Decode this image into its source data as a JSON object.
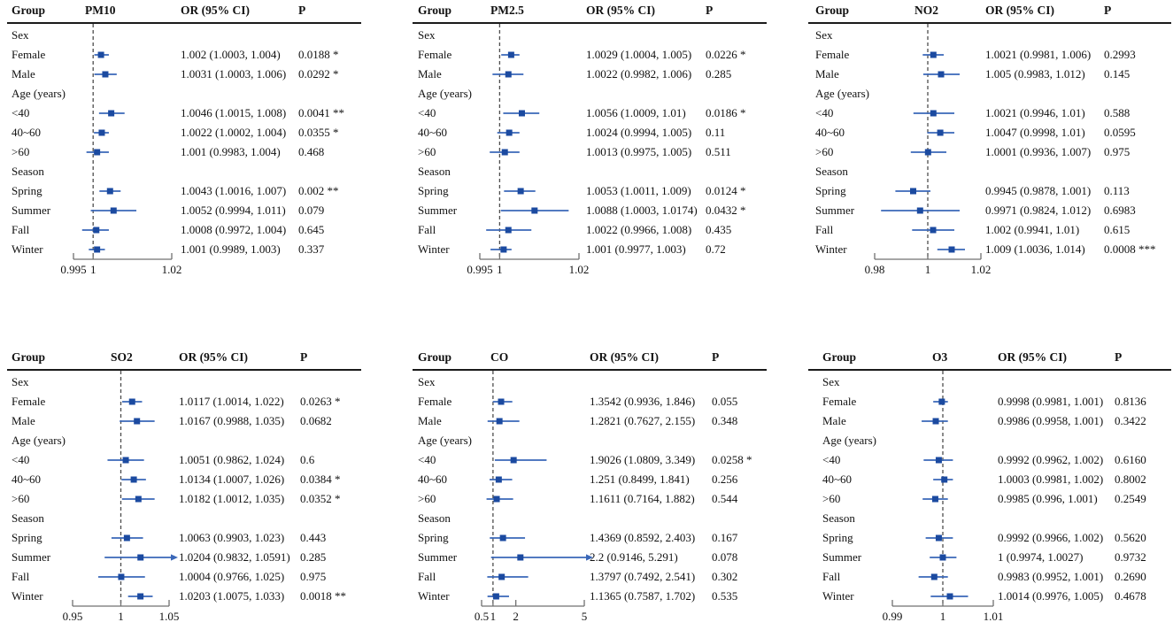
{
  "figure": {
    "description": "Forest plots of odds ratios (95% CI) for six air pollutants by sex, age and season",
    "marker_color": "#1b4aa0",
    "ci_line_color": "#3a67b8",
    "ref_line_color": "#4d4d4d",
    "axis_color": "#707070"
  },
  "chart_data": [
    {
      "type": "scatter",
      "variant": "forest-plot",
      "pollutant": "PM10",
      "columns": {
        "group": "Group",
        "or": "OR (95% CI)",
        "p": "P"
      },
      "xlim": [
        0.995,
        1.02
      ],
      "ref_line": 1,
      "ticks": [
        {
          "v": 0.995,
          "label": "0.995"
        },
        {
          "v": 1,
          "label": "1"
        },
        {
          "v": 1.02,
          "label": "1.02"
        }
      ],
      "rows": [
        {
          "label": "Sex",
          "section": true
        },
        {
          "label": "Female",
          "or": 1.002,
          "lo": 1.0003,
          "hi": 1.004,
          "or_ci": "1.002 (1.0003, 1.004)",
          "p": "0.0188 *"
        },
        {
          "label": "Male",
          "or": 1.0031,
          "lo": 1.0003,
          "hi": 1.006,
          "or_ci": "1.0031 (1.0003, 1.006)",
          "p": "0.0292 *"
        },
        {
          "label": "Age (years)",
          "section": true
        },
        {
          "label": "<40",
          "or": 1.0046,
          "lo": 1.0015,
          "hi": 1.008,
          "or_ci": "1.0046 (1.0015, 1.008)",
          "p": "0.0041 **"
        },
        {
          "label": "40~60",
          "or": 1.0022,
          "lo": 1.0002,
          "hi": 1.004,
          "or_ci": "1.0022 (1.0002, 1.004)",
          "p": "0.0355 *"
        },
        {
          "label": ">60",
          "or": 1.001,
          "lo": 0.9983,
          "hi": 1.004,
          "or_ci": "1.001 (0.9983, 1.004)",
          "p": "0.468"
        },
        {
          "label": "Season",
          "section": true
        },
        {
          "label": "Spring",
          "or": 1.0043,
          "lo": 1.0016,
          "hi": 1.007,
          "or_ci": "1.0043 (1.0016, 1.007)",
          "p": "0.002 **"
        },
        {
          "label": "Summer",
          "or": 1.0052,
          "lo": 0.9994,
          "hi": 1.011,
          "or_ci": "1.0052 (0.9994, 1.011)",
          "p": "0.079"
        },
        {
          "label": "Fall",
          "or": 1.0008,
          "lo": 0.9972,
          "hi": 1.004,
          "or_ci": "1.0008 (0.9972, 1.004)",
          "p": "0.645"
        },
        {
          "label": "Winter",
          "or": 1.001,
          "lo": 0.9989,
          "hi": 1.003,
          "or_ci": "1.001 (0.9989, 1.003)",
          "p": "0.337"
        }
      ]
    },
    {
      "type": "scatter",
      "variant": "forest-plot",
      "pollutant": "PM2.5",
      "columns": {
        "group": "Group",
        "or": "OR (95% CI)",
        "p": "P"
      },
      "xlim": [
        0.995,
        1.02
      ],
      "ref_line": 1,
      "ticks": [
        {
          "v": 0.995,
          "label": "0.995"
        },
        {
          "v": 1,
          "label": "1"
        },
        {
          "v": 1.02,
          "label": "1.02"
        }
      ],
      "rows": [
        {
          "label": "Sex",
          "section": true
        },
        {
          "label": "Female",
          "or": 1.0029,
          "lo": 1.0004,
          "hi": 1.005,
          "or_ci": "1.0029 (1.0004, 1.005)",
          "p": "0.0226 *"
        },
        {
          "label": "Male",
          "or": 1.0022,
          "lo": 0.9982,
          "hi": 1.006,
          "or_ci": "1.0022 (0.9982, 1.006)",
          "p": "0.285"
        },
        {
          "label": "Age (years)",
          "section": true
        },
        {
          "label": "<40",
          "or": 1.0056,
          "lo": 1.0009,
          "hi": 1.01,
          "or_ci": "1.0056 (1.0009, 1.01)",
          "p": "0.0186 *"
        },
        {
          "label": "40~60",
          "or": 1.0024,
          "lo": 0.9994,
          "hi": 1.005,
          "or_ci": "1.0024 (0.9994, 1.005)",
          "p": "0.11"
        },
        {
          "label": ">60",
          "or": 1.0013,
          "lo": 0.9975,
          "hi": 1.005,
          "or_ci": "1.0013 (0.9975, 1.005)",
          "p": "0.511"
        },
        {
          "label": "Season",
          "section": true
        },
        {
          "label": "Spring",
          "or": 1.0053,
          "lo": 1.0011,
          "hi": 1.009,
          "or_ci": "1.0053 (1.0011, 1.009)",
          "p": "0.0124 *"
        },
        {
          "label": "Summer",
          "or": 1.0088,
          "lo": 1.0003,
          "hi": 1.0174,
          "or_ci": "1.0088 (1.0003, 1.0174)",
          "p": "0.0432 *"
        },
        {
          "label": "Fall",
          "or": 1.0022,
          "lo": 0.9966,
          "hi": 1.008,
          "or_ci": "1.0022 (0.9966, 1.008)",
          "p": "0.435"
        },
        {
          "label": "Winter",
          "or": 1.001,
          "lo": 0.9977,
          "hi": 1.003,
          "or_ci": "1.001 (0.9977, 1.003)",
          "p": "0.72"
        }
      ]
    },
    {
      "type": "scatter",
      "variant": "forest-plot",
      "pollutant": "NO2",
      "columns": {
        "group": "Group",
        "or": "OR (95% CI)",
        "p": "P"
      },
      "xlim": [
        0.98,
        1.02
      ],
      "ref_line": 1,
      "ticks": [
        {
          "v": 0.98,
          "label": "0.98"
        },
        {
          "v": 1,
          "label": "1"
        },
        {
          "v": 1.02,
          "label": "1.02"
        }
      ],
      "rows": [
        {
          "label": "Sex",
          "section": true
        },
        {
          "label": "Female",
          "or": 1.0021,
          "lo": 0.9981,
          "hi": 1.006,
          "or_ci": "1.0021 (0.9981, 1.006)",
          "p": "0.2993"
        },
        {
          "label": "Male",
          "or": 1.005,
          "lo": 0.9983,
          "hi": 1.012,
          "or_ci": "1.005 (0.9983, 1.012)",
          "p": "0.145"
        },
        {
          "label": "Age (years)",
          "section": true
        },
        {
          "label": "<40",
          "or": 1.0021,
          "lo": 0.9946,
          "hi": 1.01,
          "or_ci": "1.0021 (0.9946, 1.01)",
          "p": "0.588"
        },
        {
          "label": "40~60",
          "or": 1.0047,
          "lo": 0.9998,
          "hi": 1.01,
          "or_ci": "1.0047 (0.9998, 1.01)",
          "p": "0.0595"
        },
        {
          "label": ">60",
          "or": 1.0001,
          "lo": 0.9936,
          "hi": 1.007,
          "or_ci": "1.0001 (0.9936, 1.007)",
          "p": "0.975"
        },
        {
          "label": "Season",
          "section": true
        },
        {
          "label": "Spring",
          "or": 0.9945,
          "lo": 0.9878,
          "hi": 1.001,
          "or_ci": "0.9945 (0.9878, 1.001)",
          "p": "0.113"
        },
        {
          "label": "Summer",
          "or": 0.9971,
          "lo": 0.9824,
          "hi": 1.012,
          "or_ci": "0.9971 (0.9824, 1.012)",
          "p": "0.6983"
        },
        {
          "label": "Fall",
          "or": 1.002,
          "lo": 0.9941,
          "hi": 1.01,
          "or_ci": "1.002 (0.9941, 1.01)",
          "p": "0.615"
        },
        {
          "label": "Winter",
          "or": 1.009,
          "lo": 1.0036,
          "hi": 1.014,
          "or_ci": "1.009 (1.0036, 1.014)",
          "p": "0.0008 ***"
        }
      ]
    },
    {
      "type": "scatter",
      "variant": "forest-plot",
      "pollutant": "SO2",
      "columns": {
        "group": "Group",
        "or": "OR (95% CI)",
        "p": "P"
      },
      "xlim": [
        0.95,
        1.05
      ],
      "ref_line": 1,
      "ticks": [
        {
          "v": 0.95,
          "label": "0.95"
        },
        {
          "v": 1,
          "label": "1"
        },
        {
          "v": 1.05,
          "label": "1.05"
        }
      ],
      "rows": [
        {
          "label": "Sex",
          "section": true
        },
        {
          "label": "Female",
          "or": 1.0117,
          "lo": 1.0014,
          "hi": 1.022,
          "or_ci": "1.0117 (1.0014, 1.022)",
          "p": "0.0263 *"
        },
        {
          "label": "Male",
          "or": 1.0167,
          "lo": 0.9988,
          "hi": 1.035,
          "or_ci": "1.0167 (0.9988, 1.035)",
          "p": "0.0682"
        },
        {
          "label": "Age (years)",
          "section": true
        },
        {
          "label": "<40",
          "or": 1.0051,
          "lo": 0.9862,
          "hi": 1.024,
          "or_ci": "1.0051 (0.9862, 1.024)",
          "p": "0.6"
        },
        {
          "label": "40~60",
          "or": 1.0134,
          "lo": 1.0007,
          "hi": 1.026,
          "or_ci": "1.0134 (1.0007, 1.026)",
          "p": "0.0384 *"
        },
        {
          "label": ">60",
          "or": 1.0182,
          "lo": 1.0012,
          "hi": 1.035,
          "or_ci": "1.0182 (1.0012, 1.035)",
          "p": "0.0352 *"
        },
        {
          "label": "Season",
          "section": true
        },
        {
          "label": "Spring",
          "or": 1.0063,
          "lo": 0.9903,
          "hi": 1.023,
          "or_ci": "1.0063 (0.9903, 1.023)",
          "p": "0.443"
        },
        {
          "label": "Summer",
          "or": 1.0204,
          "lo": 0.9832,
          "hi": 1.0591,
          "or_ci": "1.0204 (0.9832, 1.0591)",
          "p": "0.285"
        },
        {
          "label": "Fall",
          "or": 1.0004,
          "lo": 0.9766,
          "hi": 1.025,
          "or_ci": "1.0004 (0.9766, 1.025)",
          "p": "0.975"
        },
        {
          "label": "Winter",
          "or": 1.0203,
          "lo": 1.0075,
          "hi": 1.033,
          "or_ci": "1.0203 (1.0075, 1.033)",
          "p": "0.0018 **"
        }
      ]
    },
    {
      "type": "scatter",
      "variant": "forest-plot",
      "pollutant": "CO",
      "columns": {
        "group": "Group",
        "or": "OR (95% CI)",
        "p": "P"
      },
      "xlim": [
        0.5,
        5
      ],
      "ref_line": 1,
      "ticks": [
        {
          "v": 0.5,
          "label": "0.5"
        },
        {
          "v": 1,
          "label": "1"
        },
        {
          "v": 2,
          "label": "2"
        },
        {
          "v": 5,
          "label": "5"
        }
      ],
      "rows": [
        {
          "label": "Sex",
          "section": true
        },
        {
          "label": "Female",
          "or": 1.3542,
          "lo": 0.9936,
          "hi": 1.846,
          "or_ci": "1.3542 (0.9936, 1.846)",
          "p": "0.055"
        },
        {
          "label": "Male",
          "or": 1.2821,
          "lo": 0.7627,
          "hi": 2.155,
          "or_ci": "1.2821 (0.7627, 2.155)",
          "p": "0.348"
        },
        {
          "label": "Age (years)",
          "section": true
        },
        {
          "label": "<40",
          "or": 1.9026,
          "lo": 1.0809,
          "hi": 3.349,
          "or_ci": "1.9026 (1.0809, 3.349)",
          "p": "0.0258 *"
        },
        {
          "label": "40~60",
          "or": 1.251,
          "lo": 0.8499,
          "hi": 1.841,
          "or_ci": "1.251 (0.8499, 1.841)",
          "p": "0.256"
        },
        {
          "label": ">60",
          "or": 1.1611,
          "lo": 0.7164,
          "hi": 1.882,
          "or_ci": "1.1611 (0.7164, 1.882)",
          "p": "0.544"
        },
        {
          "label": "Season",
          "section": true
        },
        {
          "label": "Spring",
          "or": 1.4369,
          "lo": 0.8592,
          "hi": 2.403,
          "or_ci": "1.4369 (0.8592, 2.403)",
          "p": "0.167"
        },
        {
          "label": "Summer",
          "or": 2.2,
          "lo": 0.9146,
          "hi": 5.291,
          "or_ci": "2.2 (0.9146, 5.291)",
          "p": "0.078"
        },
        {
          "label": "Fall",
          "or": 1.3797,
          "lo": 0.7492,
          "hi": 2.541,
          "or_ci": "1.3797 (0.7492, 2.541)",
          "p": "0.302"
        },
        {
          "label": "Winter",
          "or": 1.1365,
          "lo": 0.7587,
          "hi": 1.702,
          "or_ci": "1.1365 (0.7587, 1.702)",
          "p": "0.535"
        }
      ]
    },
    {
      "type": "scatter",
      "variant": "forest-plot",
      "pollutant": "O3",
      "columns": {
        "group": "Group",
        "or": "OR (95% CI)",
        "p": "P"
      },
      "xlim": [
        0.99,
        1.01
      ],
      "ref_line": 1,
      "ticks": [
        {
          "v": 0.99,
          "label": "0.99"
        },
        {
          "v": 1,
          "label": "1"
        },
        {
          "v": 1.01,
          "label": "1.01"
        }
      ],
      "rows": [
        {
          "label": "Sex",
          "section": true
        },
        {
          "label": "Female",
          "or": 0.9998,
          "lo": 0.9981,
          "hi": 1.001,
          "or_ci": "0.9998 (0.9981, 1.001)",
          "p": "0.8136"
        },
        {
          "label": "Male",
          "or": 0.9986,
          "lo": 0.9958,
          "hi": 1.001,
          "or_ci": "0.9986 (0.9958, 1.001)",
          "p": "0.3422"
        },
        {
          "label": "Age (years)",
          "section": true
        },
        {
          "label": "<40",
          "or": 0.9992,
          "lo": 0.9962,
          "hi": 1.002,
          "or_ci": "0.9992 (0.9962, 1.002)",
          "p": "0.6160"
        },
        {
          "label": "40~60",
          "or": 1.0003,
          "lo": 0.9981,
          "hi": 1.002,
          "or_ci": "1.0003 (0.9981, 1.002)",
          "p": "0.8002"
        },
        {
          "label": ">60",
          "or": 0.9985,
          "lo": 0.996,
          "hi": 1.001,
          "or_ci": "0.9985 (0.996, 1.001)",
          "p": "0.2549"
        },
        {
          "label": "Season",
          "section": true
        },
        {
          "label": "Spring",
          "or": 0.9992,
          "lo": 0.9966,
          "hi": 1.002,
          "or_ci": "0.9992 (0.9966, 1.002)",
          "p": "0.5620"
        },
        {
          "label": "Summer",
          "or": 1,
          "lo": 0.9974,
          "hi": 1.0027,
          "or_ci": "1 (0.9974, 1.0027)",
          "p": "0.9732"
        },
        {
          "label": "Fall",
          "or": 0.9983,
          "lo": 0.9952,
          "hi": 1.001,
          "or_ci": "0.9983 (0.9952, 1.001)",
          "p": "0.2690"
        },
        {
          "label": "Winter",
          "or": 1.0014,
          "lo": 0.9976,
          "hi": 1.005,
          "or_ci": "1.0014 (0.9976, 1.005)",
          "p": "0.4678"
        }
      ]
    }
  ]
}
